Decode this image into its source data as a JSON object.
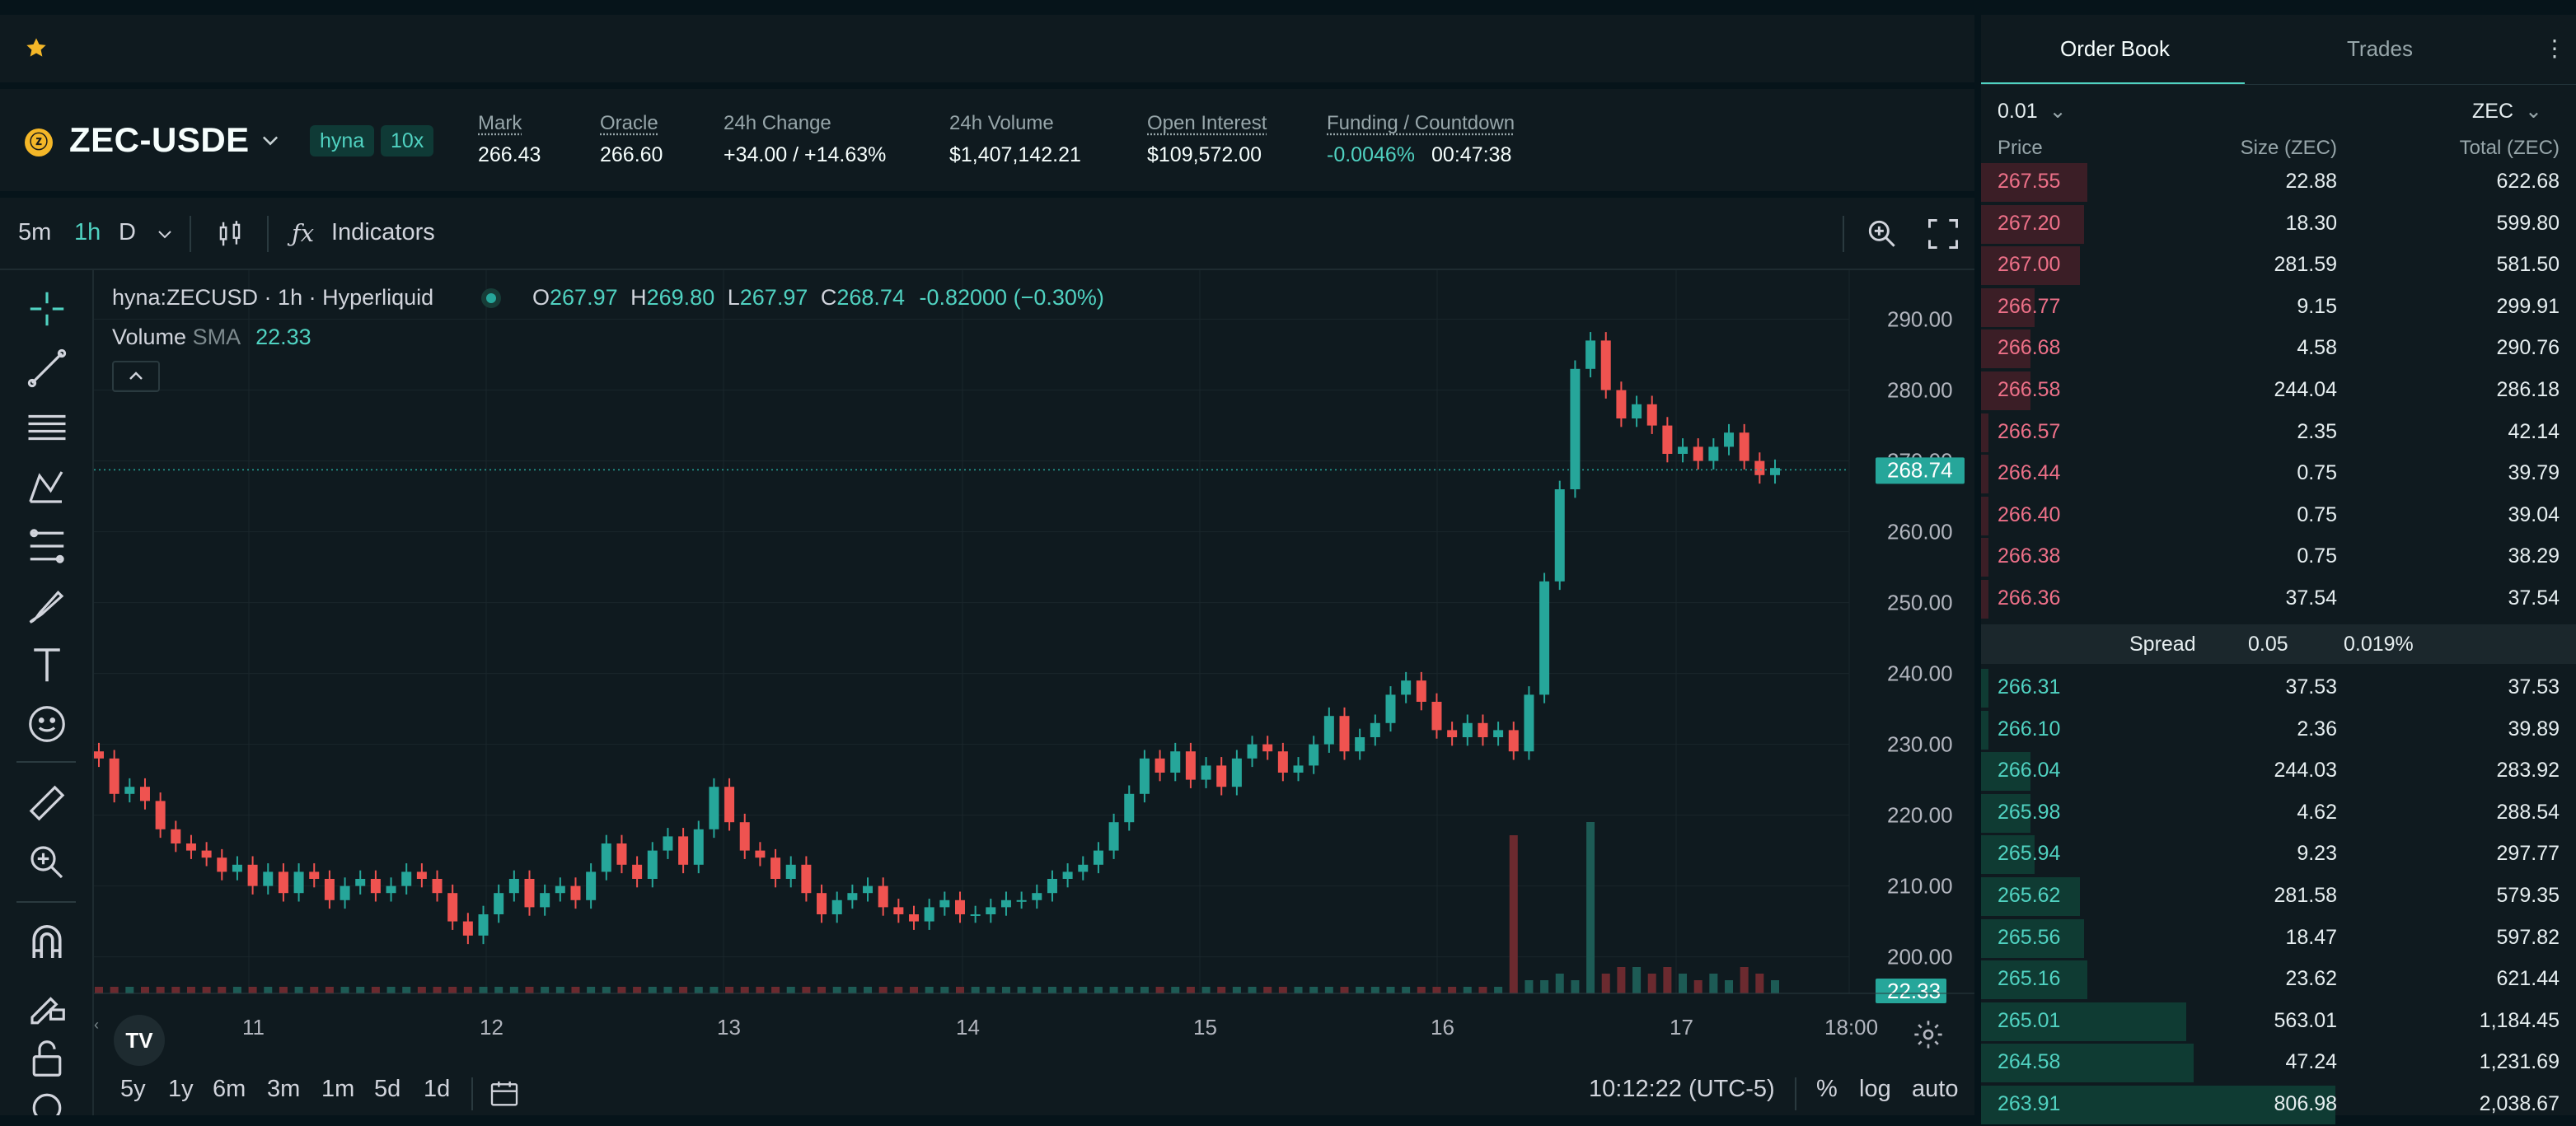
{
  "colors": {
    "up": "#26a69a",
    "down": "#ef5350",
    "accent": "#50d2c1",
    "ask_text": "#ed7088",
    "bid_text": "#50d2c1"
  },
  "topbar": {
    "icon": "star-icon"
  },
  "market": {
    "symbol": "ZEC-USDE",
    "tags": [
      "hyna",
      "10x"
    ],
    "stats": [
      {
        "label": "Mark",
        "value": "266.43"
      },
      {
        "label": "Oracle",
        "value": "266.60"
      },
      {
        "label": "24h Change",
        "value": "+34.00 / +14.63%"
      },
      {
        "label": "24h Volume",
        "value": "$1,407,142.21"
      },
      {
        "label": "Open Interest",
        "value": "$109,572.00"
      },
      {
        "label": "Funding / Countdown",
        "value": "-0.0046%",
        "extra": "00:47:38"
      }
    ]
  },
  "chart_toolbar": {
    "timeframes": [
      "5m",
      "1h",
      "D"
    ],
    "active": "1h",
    "indicators_label": "Indicators"
  },
  "legend": {
    "title": "hyna:ZECUSD · 1h · Hyperliquid",
    "o_label": "O",
    "o": "267.97",
    "h_label": "H",
    "h": "269.80",
    "l_label": "L",
    "l": "267.97",
    "c_label": "C",
    "c": "268.74",
    "change": "-0.82000 (−0.30%)",
    "volume_label": "Volume",
    "sma_label": "SMA",
    "sma_value": "22.33"
  },
  "chart_data": {
    "type": "candlestick",
    "ylim": [
      196,
      296
    ],
    "y_ticks": [
      "200.00",
      "210.00",
      "220.00",
      "230.00",
      "240.00",
      "250.00",
      "260.00",
      "270.00",
      "280.00",
      "290.00"
    ],
    "x_ticks": [
      "11",
      "12",
      "13",
      "14",
      "15",
      "16",
      "17",
      "18:00"
    ],
    "last_price": "268.74",
    "last_volume": "22.33",
    "close_series": [
      228,
      223,
      224,
      222,
      218,
      216,
      215,
      214,
      212,
      213,
      210,
      212,
      209,
      212,
      211,
      208,
      210,
      211,
      209,
      210,
      212,
      211,
      209,
      205,
      203,
      206,
      209,
      211,
      207,
      209,
      210,
      208,
      212,
      216,
      213,
      211,
      215,
      217,
      213,
      218,
      224,
      219,
      215,
      214,
      211,
      213,
      209,
      206,
      208,
      209,
      210,
      207,
      206,
      205,
      207,
      208,
      206,
      206,
      207,
      208,
      208,
      209,
      211,
      212,
      213,
      215,
      219,
      223,
      228,
      226,
      229,
      225,
      227,
      224,
      228,
      230,
      229,
      226,
      227,
      230,
      234,
      229,
      231,
      233,
      237,
      239,
      236,
      232,
      231,
      233,
      231,
      232,
      229,
      237,
      253,
      266,
      283,
      287,
      280,
      276,
      278,
      275,
      271,
      272,
      270,
      272,
      274,
      270,
      268,
      269
    ],
    "volume_series": [
      1,
      1,
      1,
      1,
      1,
      1,
      1,
      1,
      1,
      1,
      1,
      1,
      1,
      1,
      1,
      1,
      1,
      1,
      1,
      1,
      1,
      1,
      1,
      1,
      1,
      1,
      1,
      1,
      1,
      1,
      1,
      1,
      1,
      1,
      1,
      1,
      1,
      1,
      1,
      1,
      1,
      1,
      1,
      1,
      1,
      1,
      1,
      1,
      1,
      1,
      1,
      1,
      1,
      1,
      1,
      1,
      1,
      1,
      1,
      1,
      1,
      1,
      1,
      1,
      1,
      1,
      1,
      1,
      1,
      1,
      1,
      1,
      1,
      1,
      1,
      1,
      1,
      1,
      1,
      1,
      1,
      1,
      1,
      1,
      1,
      1,
      1,
      1,
      1,
      1,
      1,
      1,
      24,
      2,
      2,
      3,
      2,
      26,
      3,
      4,
      4,
      3,
      4,
      3,
      2,
      3,
      2,
      4,
      3,
      2
    ]
  },
  "bottom": {
    "ranges": [
      "5y",
      "1y",
      "6m",
      "3m",
      "1m",
      "5d",
      "1d"
    ],
    "time": "10:12:22 (UTC-5)",
    "pct": "%",
    "log": "log",
    "auto": "auto"
  },
  "orderbook": {
    "tabs": [
      "Order Book",
      "Trades"
    ],
    "tick": "0.01",
    "unit": "ZEC",
    "headers": [
      "Price",
      "Size (ZEC)",
      "Total (ZEC)"
    ],
    "asks": [
      {
        "price": "267.55",
        "size": "22.88",
        "total": "622.68",
        "depth": 0.3
      },
      {
        "price": "267.20",
        "size": "18.30",
        "total": "599.80",
        "depth": 0.29
      },
      {
        "price": "267.00",
        "size": "281.59",
        "total": "581.50",
        "depth": 0.28
      },
      {
        "price": "266.77",
        "size": "9.15",
        "total": "299.91",
        "depth": 0.15
      },
      {
        "price": "266.68",
        "size": "4.58",
        "total": "290.76",
        "depth": 0.14
      },
      {
        "price": "266.58",
        "size": "244.04",
        "total": "286.18",
        "depth": 0.14
      },
      {
        "price": "266.57",
        "size": "2.35",
        "total": "42.14",
        "depth": 0.02
      },
      {
        "price": "266.44",
        "size": "0.75",
        "total": "39.79",
        "depth": 0.02
      },
      {
        "price": "266.40",
        "size": "0.75",
        "total": "39.04",
        "depth": 0.02
      },
      {
        "price": "266.38",
        "size": "0.75",
        "total": "38.29",
        "depth": 0.02
      },
      {
        "price": "266.36",
        "size": "37.54",
        "total": "37.54",
        "depth": 0.02
      }
    ],
    "spread": {
      "label": "Spread",
      "value": "0.05",
      "pct": "0.019%"
    },
    "bids": [
      {
        "price": "266.31",
        "size": "37.53",
        "total": "37.53",
        "depth": 0.02
      },
      {
        "price": "266.10",
        "size": "2.36",
        "total": "39.89",
        "depth": 0.02
      },
      {
        "price": "266.04",
        "size": "244.03",
        "total": "283.92",
        "depth": 0.14
      },
      {
        "price": "265.98",
        "size": "4.62",
        "total": "288.54",
        "depth": 0.14
      },
      {
        "price": "265.94",
        "size": "9.23",
        "total": "297.77",
        "depth": 0.15
      },
      {
        "price": "265.62",
        "size": "281.58",
        "total": "579.35",
        "depth": 0.28
      },
      {
        "price": "265.56",
        "size": "18.47",
        "total": "597.82",
        "depth": 0.29
      },
      {
        "price": "265.16",
        "size": "23.62",
        "total": "621.44",
        "depth": 0.3
      },
      {
        "price": "265.01",
        "size": "563.01",
        "total": "1,184.45",
        "depth": 0.58
      },
      {
        "price": "264.58",
        "size": "47.24",
        "total": "1,231.69",
        "depth": 0.6
      },
      {
        "price": "263.91",
        "size": "806.98",
        "total": "2,038.67",
        "depth": 1.0
      }
    ]
  }
}
